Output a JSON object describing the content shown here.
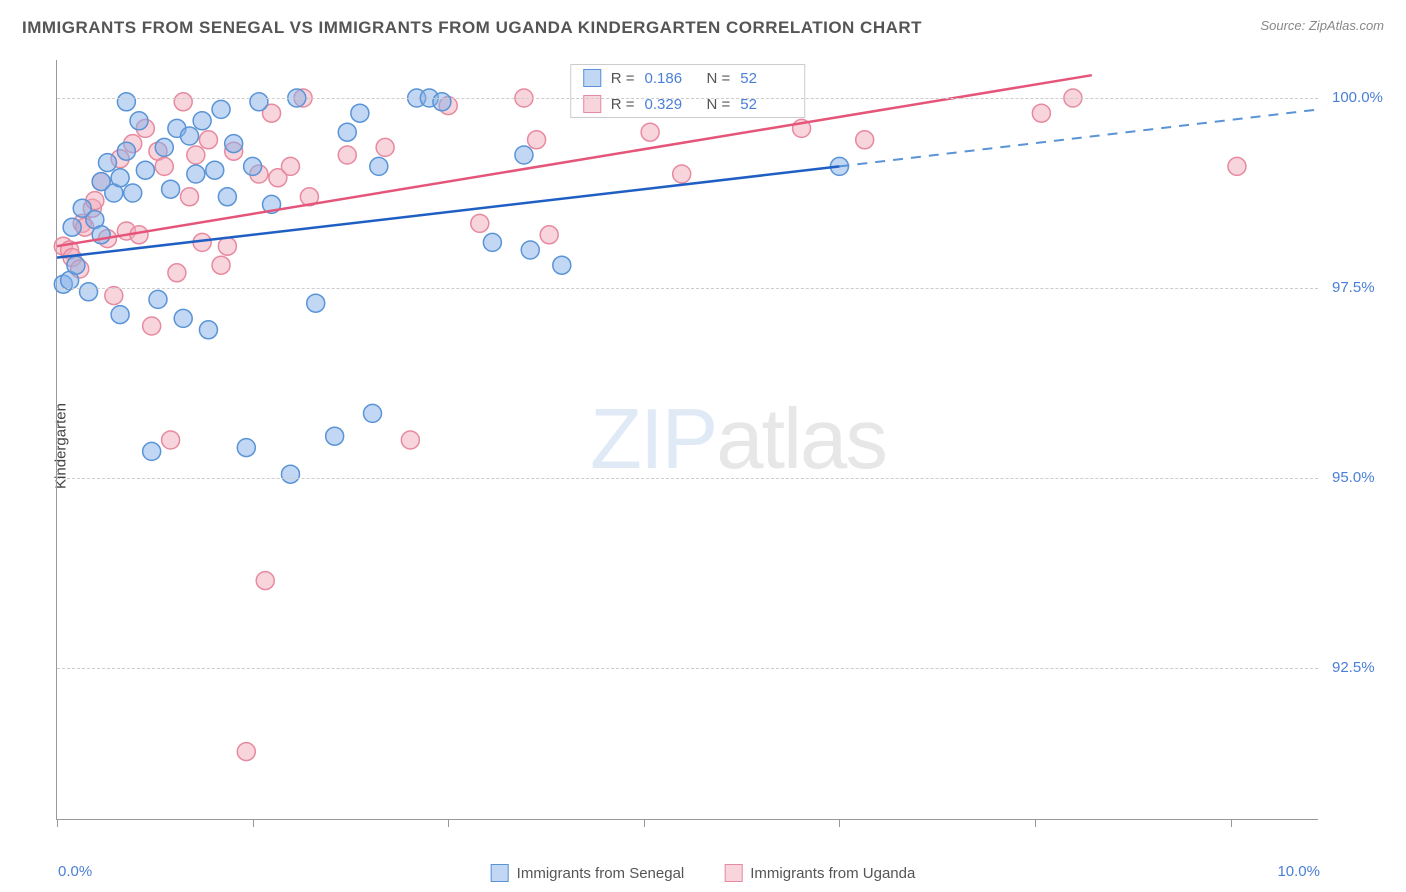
{
  "chart": {
    "type": "scatter",
    "title": "IMMIGRANTS FROM SENEGAL VS IMMIGRANTS FROM UGANDA KINDERGARTEN CORRELATION CHART",
    "source": "Source: ZipAtlas.com",
    "watermark_zip": "ZIP",
    "watermark_atlas": "atlas",
    "ylabel": "Kindergarten",
    "xlim": [
      0,
      10
    ],
    "ylim": [
      90.5,
      100.5
    ],
    "xtick_labels": {
      "min": "0.0%",
      "max": "10.0%"
    },
    "ytick_positions": [
      92.5,
      95.0,
      97.5,
      100.0
    ],
    "ytick_labels": [
      "92.5%",
      "95.0%",
      "97.5%",
      "100.0%"
    ],
    "xtick_positions": [
      0,
      1.55,
      3.1,
      4.65,
      6.2,
      7.75,
      9.3
    ],
    "background_color": "#ffffff",
    "grid_color": "#cccccc",
    "axis_color": "#999999",
    "series": {
      "senegal": {
        "label": "Immigrants from Senegal",
        "marker_fill": "rgba(131,176,232,0.5)",
        "marker_stroke": "#5a94d6",
        "marker_radius": 9,
        "line_color": "#1f5fc4",
        "line_width": 2.5,
        "dash_color": "#5a94d6",
        "r_value": "0.186",
        "n_value": "52",
        "trend_start": [
          0,
          97.9
        ],
        "trend_solid_end": [
          6.2,
          99.1
        ],
        "trend_dash_end": [
          10,
          99.85
        ],
        "points": [
          [
            0.05,
            97.55
          ],
          [
            0.1,
            97.6
          ],
          [
            0.15,
            97.8
          ],
          [
            0.12,
            98.3
          ],
          [
            0.2,
            98.55
          ],
          [
            0.25,
            97.45
          ],
          [
            0.3,
            98.4
          ],
          [
            0.35,
            98.2
          ],
          [
            0.35,
            98.9
          ],
          [
            0.4,
            99.15
          ],
          [
            0.45,
            98.75
          ],
          [
            0.5,
            98.95
          ],
          [
            0.5,
            97.15
          ],
          [
            0.55,
            99.3
          ],
          [
            0.55,
            99.95
          ],
          [
            0.6,
            98.75
          ],
          [
            0.65,
            99.7
          ],
          [
            0.7,
            99.05
          ],
          [
            0.75,
            95.35
          ],
          [
            0.8,
            97.35
          ],
          [
            0.85,
            99.35
          ],
          [
            0.9,
            98.8
          ],
          [
            0.95,
            99.6
          ],
          [
            1.0,
            97.1
          ],
          [
            1.05,
            99.5
          ],
          [
            1.1,
            99.0
          ],
          [
            1.15,
            99.7
          ],
          [
            1.2,
            96.95
          ],
          [
            1.25,
            99.05
          ],
          [
            1.3,
            99.85
          ],
          [
            1.35,
            98.7
          ],
          [
            1.4,
            99.4
          ],
          [
            1.5,
            95.4
          ],
          [
            1.55,
            99.1
          ],
          [
            1.6,
            99.95
          ],
          [
            1.7,
            98.6
          ],
          [
            1.85,
            95.05
          ],
          [
            1.9,
            100.0
          ],
          [
            2.05,
            97.3
          ],
          [
            2.2,
            95.55
          ],
          [
            2.3,
            99.55
          ],
          [
            2.4,
            99.8
          ],
          [
            2.5,
            95.85
          ],
          [
            2.55,
            99.1
          ],
          [
            2.85,
            100.0
          ],
          [
            2.95,
            100.0
          ],
          [
            3.05,
            99.95
          ],
          [
            3.45,
            98.1
          ],
          [
            3.7,
            99.25
          ],
          [
            3.75,
            98.0
          ],
          [
            4.0,
            97.8
          ],
          [
            6.2,
            99.1
          ]
        ]
      },
      "uganda": {
        "label": "Immigrants from Uganda",
        "marker_fill": "rgba(242,170,186,0.5)",
        "marker_stroke": "#e78aa0",
        "marker_radius": 9,
        "line_color": "#e5557a",
        "line_width": 2.5,
        "r_value": "0.329",
        "n_value": "52",
        "trend_start": [
          0,
          98.05
        ],
        "trend_solid_end": [
          8.2,
          100.3
        ],
        "points": [
          [
            0.05,
            98.05
          ],
          [
            0.1,
            98.0
          ],
          [
            0.12,
            97.9
          ],
          [
            0.18,
            97.75
          ],
          [
            0.2,
            98.35
          ],
          [
            0.22,
            98.3
          ],
          [
            0.28,
            98.55
          ],
          [
            0.3,
            98.65
          ],
          [
            0.35,
            98.9
          ],
          [
            0.4,
            98.15
          ],
          [
            0.45,
            97.4
          ],
          [
            0.5,
            99.2
          ],
          [
            0.55,
            98.25
          ],
          [
            0.6,
            99.4
          ],
          [
            0.65,
            98.2
          ],
          [
            0.7,
            99.6
          ],
          [
            0.75,
            97.0
          ],
          [
            0.8,
            99.3
          ],
          [
            0.85,
            99.1
          ],
          [
            0.9,
            95.5
          ],
          [
            0.95,
            97.7
          ],
          [
            1.0,
            99.95
          ],
          [
            1.05,
            98.7
          ],
          [
            1.1,
            99.25
          ],
          [
            1.15,
            98.1
          ],
          [
            1.2,
            99.45
          ],
          [
            1.3,
            97.8
          ],
          [
            1.35,
            98.05
          ],
          [
            1.4,
            99.3
          ],
          [
            1.5,
            91.4
          ],
          [
            1.6,
            99.0
          ],
          [
            1.65,
            93.65
          ],
          [
            1.7,
            99.8
          ],
          [
            1.75,
            98.95
          ],
          [
            1.85,
            99.1
          ],
          [
            1.95,
            100.0
          ],
          [
            2.0,
            98.7
          ],
          [
            2.3,
            99.25
          ],
          [
            2.6,
            99.35
          ],
          [
            2.8,
            95.5
          ],
          [
            3.1,
            99.9
          ],
          [
            3.35,
            98.35
          ],
          [
            3.7,
            100.0
          ],
          [
            3.8,
            99.45
          ],
          [
            3.9,
            98.2
          ],
          [
            4.7,
            99.55
          ],
          [
            4.95,
            99.0
          ],
          [
            5.9,
            99.6
          ],
          [
            6.4,
            99.45
          ],
          [
            7.8,
            99.8
          ],
          [
            8.05,
            100.0
          ],
          [
            9.35,
            99.1
          ]
        ]
      }
    },
    "legend_stats": {
      "r_label": "R  =",
      "n_label": "N  ="
    }
  }
}
